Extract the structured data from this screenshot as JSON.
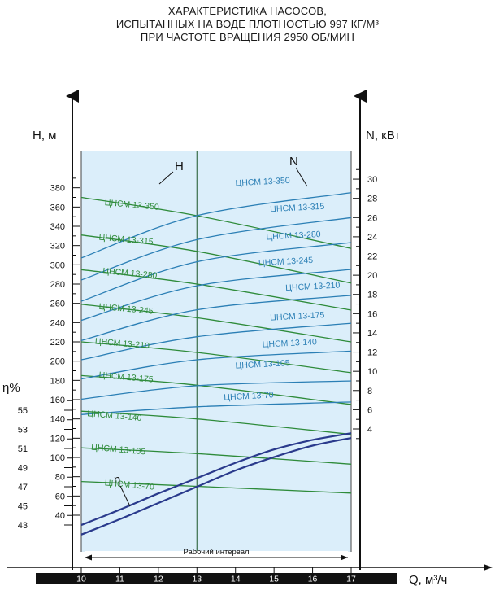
{
  "title_lines": [
    "ХАРАКТЕРИСТИКА НАСОСОВ,",
    "ИСПЫТАННЫХ НА ВОДЕ ПЛОТНОСТЬЮ 997 КГ/М³",
    "ПРИ ЧАСТОТЕ ВРАЩЕНИЯ 2950 ОБ/МИН"
  ],
  "colors": {
    "head": "#2e8b3a",
    "power": "#2b7fb5",
    "efficiency": "#2a3a8c",
    "plot_bg": "#dbeefa",
    "axis": "#111111"
  },
  "chart_data": {
    "type": "line",
    "x_label": "Q, м³/ч",
    "x_ticks": [
      10,
      11,
      12,
      13,
      14,
      15,
      16,
      17
    ],
    "x_range": [
      10,
      17
    ],
    "h_label": "H, м",
    "h_ticks": [
      40,
      60,
      80,
      100,
      120,
      140,
      160,
      180,
      200,
      220,
      240,
      260,
      280,
      300,
      320,
      340,
      360,
      380
    ],
    "h_range": [
      30,
      390
    ],
    "n_label": "N, кВт",
    "n_ticks": [
      4,
      6,
      8,
      10,
      12,
      14,
      16,
      18,
      20,
      22,
      24,
      26,
      28,
      30
    ],
    "eta_label": "η%",
    "eta_ticks": [
      43,
      45,
      47,
      49,
      51,
      53,
      55
    ],
    "head_curve_label": "H",
    "power_curve_label": "N",
    "eta_curve_label": "η",
    "working_interval_label": "Рабочий интервал",
    "working_interval": [
      10,
      17
    ],
    "head_curves": [
      {
        "name": "ЦНСМ 13-350",
        "q": [
          10,
          13,
          17
        ],
        "h": [
          370,
          351,
          317
        ]
      },
      {
        "name": "ЦНСМ 13-315",
        "q": [
          10,
          13,
          17
        ],
        "h": [
          331,
          314,
          281
        ]
      },
      {
        "name": "ЦНСМ 13-280",
        "q": [
          10,
          13,
          17
        ],
        "h": [
          295,
          280,
          253
        ]
      },
      {
        "name": "ЦНСМ 13-245",
        "q": [
          10,
          13,
          17
        ],
        "h": [
          259,
          245,
          220
        ]
      },
      {
        "name": "ЦНСМ 13-210",
        "q": [
          10,
          13,
          17
        ],
        "h": [
          220,
          209,
          188
        ]
      },
      {
        "name": "ЦНСМ 13-175",
        "q": [
          10,
          13,
          17
        ],
        "h": [
          185,
          175,
          155
        ]
      },
      {
        "name": "ЦНСМ 13-140",
        "q": [
          10,
          13,
          17
        ],
        "h": [
          148,
          140,
          124
        ]
      },
      {
        "name": "ЦНСМ 13-105",
        "q": [
          10,
          13,
          17
        ],
        "h": [
          110,
          104,
          93
        ]
      },
      {
        "name": "ЦНСМ 13-70",
        "q": [
          10,
          13,
          17
        ],
        "h": [
          75,
          70,
          63
        ]
      }
    ],
    "power_curves": [
      {
        "name": "ЦНСМ 13-350",
        "q": [
          10,
          13,
          17
        ],
        "n": [
          21.8,
          26.2,
          28.6
        ]
      },
      {
        "name": "ЦНСМ 13-315",
        "q": [
          10,
          13,
          17
        ],
        "n": [
          19.5,
          23.7,
          26.0
        ]
      },
      {
        "name": "ЦНСМ 13-280",
        "q": [
          10,
          13,
          17
        ],
        "n": [
          17.3,
          21.4,
          23.4
        ]
      },
      {
        "name": "ЦНСМ 13-245",
        "q": [
          10,
          13,
          17
        ],
        "n": [
          15.3,
          18.9,
          20.6
        ]
      },
      {
        "name": "ЦНСМ 13-210",
        "q": [
          10,
          13,
          17
        ],
        "n": [
          13.2,
          16.4,
          17.9
        ]
      },
      {
        "name": "ЦНСМ 13-175",
        "q": [
          10,
          13,
          17
        ],
        "n": [
          11.2,
          13.6,
          15.0
        ]
      },
      {
        "name": "ЦНСМ 13-140",
        "q": [
          10,
          13,
          17
        ],
        "n": [
          9.2,
          11.2,
          12.1
        ]
      },
      {
        "name": "ЦНСМ 13-105",
        "q": [
          10,
          13,
          17
        ],
        "n": [
          7.1,
          8.5,
          9.0
        ]
      },
      {
        "name": "ЦНСМ 13-70",
        "q": [
          10,
          13,
          17
        ],
        "n": [
          5.5,
          6.3,
          6.8
        ]
      }
    ],
    "efficiency_curves": [
      {
        "q": [
          10,
          11,
          12,
          13,
          14,
          15,
          16,
          17
        ],
        "eta": [
          43.0,
          44.6,
          46.3,
          47.9,
          49.5,
          50.9,
          51.9,
          52.6
        ]
      },
      {
        "q": [
          10,
          11,
          12,
          13,
          14,
          15,
          16,
          17
        ],
        "eta": [
          42.0,
          43.6,
          45.3,
          47.0,
          48.7,
          50.1,
          51.3,
          52.1
        ]
      }
    ],
    "head_label_positions": [
      {
        "name": "ЦНСМ 13-350",
        "q": 10.6,
        "h": 362
      },
      {
        "name": "ЦНСМ 13-315",
        "q": 10.45,
        "h": 326
      },
      {
        "name": "ЦНСМ 13-280",
        "q": 10.55,
        "h": 291
      },
      {
        "name": "ЦНСМ 13-245",
        "q": 10.45,
        "h": 254
      },
      {
        "name": "ЦНСМ 13-210",
        "q": 10.35,
        "h": 218
      },
      {
        "name": "ЦНСМ 13-175",
        "q": 10.45,
        "h": 183
      },
      {
        "name": "ЦНСМ 13-140",
        "q": 10.15,
        "h": 143
      },
      {
        "name": "ЦНСМ 13-105",
        "q": 10.25,
        "h": 108
      },
      {
        "name": "ЦНСМ 13-70",
        "q": 10.6,
        "h": 71
      }
    ],
    "power_label_positions": [
      {
        "name": "ЦНСМ 13-350",
        "q": 14.0,
        "n": 29.3
      },
      {
        "name": "ЦНСМ 13-315",
        "q": 14.9,
        "n": 26.6
      },
      {
        "name": "ЦНСМ 13-280",
        "q": 14.8,
        "n": 23.7
      },
      {
        "name": "ЦНСМ 13-245",
        "q": 14.6,
        "n": 21.0
      },
      {
        "name": "ЦНСМ 13-210",
        "q": 15.3,
        "n": 18.4
      },
      {
        "name": "ЦНСМ 13-175",
        "q": 14.9,
        "n": 15.3
      },
      {
        "name": "ЦНСМ 13-140",
        "q": 14.7,
        "n": 12.5
      },
      {
        "name": "ЦНСМ 13-105",
        "q": 14.0,
        "n": 10.3
      },
      {
        "name": "ЦНСМ 13-70",
        "q": 13.7,
        "n": 7.0
      }
    ]
  }
}
